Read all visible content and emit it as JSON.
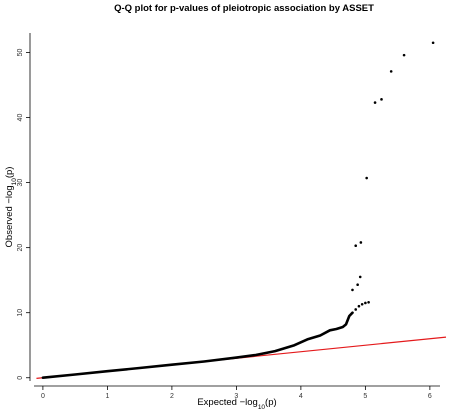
{
  "chart_data": {
    "type": "scatter",
    "title": "Q-Q plot for p-values of pleiotropic association by ASSET",
    "xlabel": "Expected",
    "ylabel": "Observed",
    "axis_math": {
      "prefix": "−log",
      "subscript": "10",
      "arg": "(p)"
    },
    "xlim": [
      -0.2,
      6.25
    ],
    "ylim": [
      -0.5,
      53
    ],
    "x_ticks": [
      "0",
      "1",
      "2",
      "3",
      "4",
      "5",
      "6"
    ],
    "y_ticks": [
      "0",
      "10",
      "20",
      "30",
      "40",
      "50"
    ],
    "point_color": "#000000",
    "reference_line": {
      "color": "#e41a1c",
      "slope": 1,
      "intercept": 0,
      "label": ""
    },
    "dense_curve": [
      [
        0.0,
        0.0
      ],
      [
        0.5,
        0.5
      ],
      [
        1.0,
        1.0
      ],
      [
        1.5,
        1.5
      ],
      [
        2.0,
        2.0
      ],
      [
        2.5,
        2.5
      ],
      [
        3.0,
        3.1
      ],
      [
        3.3,
        3.5
      ],
      [
        3.6,
        4.1
      ],
      [
        3.9,
        5.0
      ],
      [
        4.1,
        5.9
      ],
      [
        4.3,
        6.5
      ],
      [
        4.45,
        7.3
      ],
      [
        4.55,
        7.5
      ],
      [
        4.65,
        7.8
      ],
      [
        4.7,
        8.2
      ],
      [
        4.75,
        9.5
      ],
      [
        4.8,
        10.0
      ]
    ],
    "tail_points": [
      [
        4.85,
        10.5
      ],
      [
        4.9,
        11.0
      ],
      [
        4.95,
        11.3
      ],
      [
        5.0,
        11.5
      ],
      [
        5.05,
        11.6
      ],
      [
        4.8,
        13.5
      ],
      [
        4.88,
        14.3
      ],
      [
        4.92,
        15.5
      ],
      [
        4.85,
        20.3
      ],
      [
        4.93,
        20.8
      ],
      [
        5.02,
        30.7
      ],
      [
        5.15,
        42.3
      ],
      [
        5.25,
        42.8
      ],
      [
        5.4,
        47.1
      ],
      [
        5.6,
        49.6
      ],
      [
        6.05,
        51.5
      ]
    ]
  }
}
